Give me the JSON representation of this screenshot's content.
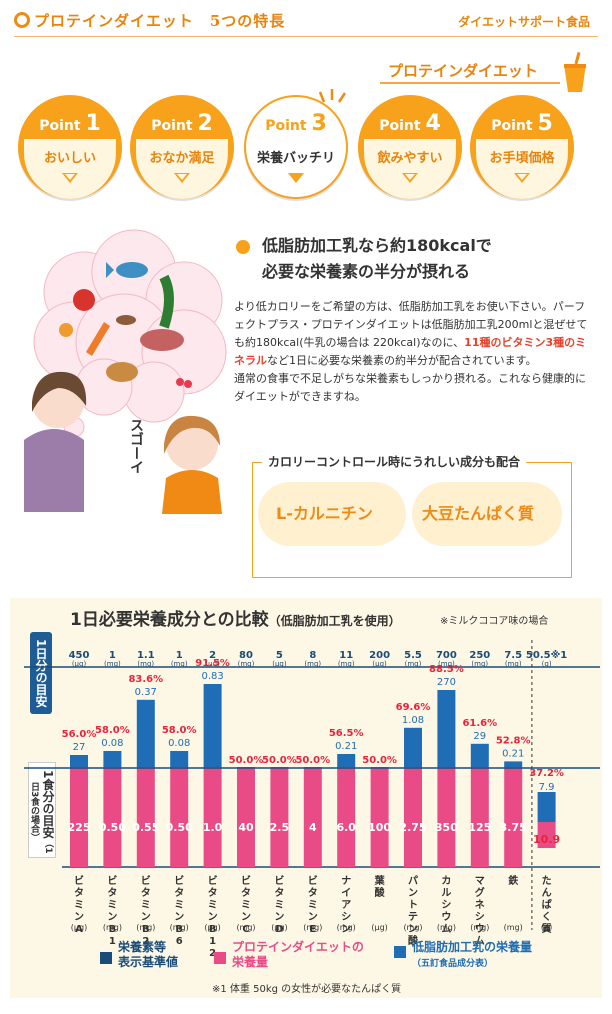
{
  "header": {
    "title": "プロテインダイエット　5つの特長",
    "right": "ダイエットサポート食品",
    "brand": "プロテインダイエット"
  },
  "points": [
    {
      "word": "Point",
      "num": "1",
      "label": "おいしい"
    },
    {
      "word": "Point",
      "num": "2",
      "label": "おなか満足"
    },
    {
      "word": "Point",
      "num": "3",
      "label": "栄養バッチリ"
    },
    {
      "word": "Point",
      "num": "4",
      "label": "飲みやすい"
    },
    {
      "word": "Point",
      "num": "5",
      "label": "お手頃価格"
    }
  ],
  "section": {
    "headline1": "低脂肪加工乳なら約180kcalで",
    "headline2": "必要な栄養素の半分が摂れる",
    "body1": "より低カロリーをご希望の方は、低脂肪加工乳をお使い下さい。パーフェクトプラス・プロテインダイエットは低脂肪加工乳200mlと混ぜせても約180kcal(牛乳の場合は 220kcal)なのに、",
    "body_em": "11種のビタミン3種のミネラル",
    "body2": "など1日に必要な栄養素の約半分が配合されています。",
    "body3": "通常の食事で不足しがちな栄養素もしっかり摂れる。これなら健康的にダイエットができますね。",
    "sugoi": "スゴーイ",
    "box_title": "カロリーコントロール時にうれしい成分も配合",
    "badges": [
      "L-カルニチン",
      "大豆たんぱく質"
    ]
  },
  "chart_header": {
    "title": "1日必要栄養成分との比較",
    "title_small": "（低脂肪加工乳を使用）",
    "note": "※ミルクココア味の場合",
    "left_label_top": "1日分の目安",
    "left_label_bottom": "1食分の目安",
    "left_label_bottom_sub": "（1日3食の場合）",
    "footnote": "※1 体重 50kg の女性が必要なたんぱく質"
  },
  "colors": {
    "pink": "#e94b86",
    "blue": "#1f6db5",
    "navy": "#1a4c7a",
    "orange": "#f7a21a",
    "red": "#e8243a"
  },
  "chart_data": {
    "type": "bar",
    "stacked": true,
    "categories": [
      "ビタミンA",
      "ビタミンB1",
      "ビタミンB2",
      "ビタミンB6",
      "ビタミンB12",
      "ビタミンC",
      "ビタミンD",
      "ビタミンE",
      "ナイアシン",
      "葉酸",
      "パントテン酸",
      "カルシウム",
      "マグネシウム",
      "鉄",
      "たんぱく質"
    ],
    "units": [
      "(μg)",
      "(mg)",
      "(mg)",
      "(mg)",
      "(μg)",
      "(mg)",
      "(μg)",
      "(mg)",
      "(mg)",
      "(μg)",
      "(mg)",
      "(mg)",
      "(mg)",
      "(mg)",
      "(g)"
    ],
    "daily_values": [
      "450",
      "1",
      "1.1",
      "1",
      "2",
      "80",
      "5",
      "8",
      "11",
      "200",
      "5.5",
      "700",
      "250",
      "7.5",
      "50.5"
    ],
    "daily_value_note": "※1",
    "percentages": [
      "56.0%",
      "58.0%",
      "83.6%",
      "58.0%",
      "91.5%",
      "50.0%",
      "50.0%",
      "50.0%",
      "56.5%",
      "50.0%",
      "69.6%",
      "88.5%",
      "61.6%",
      "52.8%",
      "37.2%"
    ],
    "percent_values": [
      56.0,
      58.0,
      83.6,
      58.0,
      91.5,
      50.0,
      50.0,
      50.0,
      56.5,
      50.0,
      69.6,
      88.5,
      61.6,
      52.8,
      37.2
    ],
    "series": [
      {
        "name": "プロテインダイエットの栄養量",
        "values": [
          225,
          0.5,
          0.55,
          0.5,
          1.0,
          40,
          2.5,
          4,
          6.0,
          100,
          2.75,
          350,
          125,
          3.75,
          10.9
        ],
        "labels": [
          "225",
          "0.50",
          "0.55",
          "0.50",
          "1.0",
          "40",
          "2.5",
          "4",
          "6.0",
          "100",
          "2.75",
          "350",
          "125",
          "3.75",
          "10.9"
        ]
      },
      {
        "name": "低脂肪加工乳の栄養量",
        "values": [
          27,
          0.08,
          0.37,
          0.08,
          0.83,
          null,
          null,
          null,
          0.21,
          null,
          1.08,
          270,
          29,
          0.21,
          7.9
        ],
        "labels": [
          "27",
          "0.08",
          "0.37",
          "0.08",
          "0.83",
          "",
          "",
          "",
          "0.21",
          "",
          "1.08",
          "270",
          "29",
          "0.21",
          "7.9"
        ]
      }
    ],
    "reference": {
      "name": "栄養素等表示基準値",
      "one_day": "1日分の目安",
      "one_meal": "1食分の目安"
    },
    "legend": [
      {
        "name": "栄養素等",
        "name2": "表示基準値",
        "color": "#1a4c7a"
      },
      {
        "name": "プロテインダイエットの",
        "name2": "栄養量",
        "color": "#e94b86"
      },
      {
        "name": "低脂肪加工乳の栄養量",
        "name2": "（五訂食品成分表）",
        "color": "#1f6db5"
      }
    ]
  }
}
